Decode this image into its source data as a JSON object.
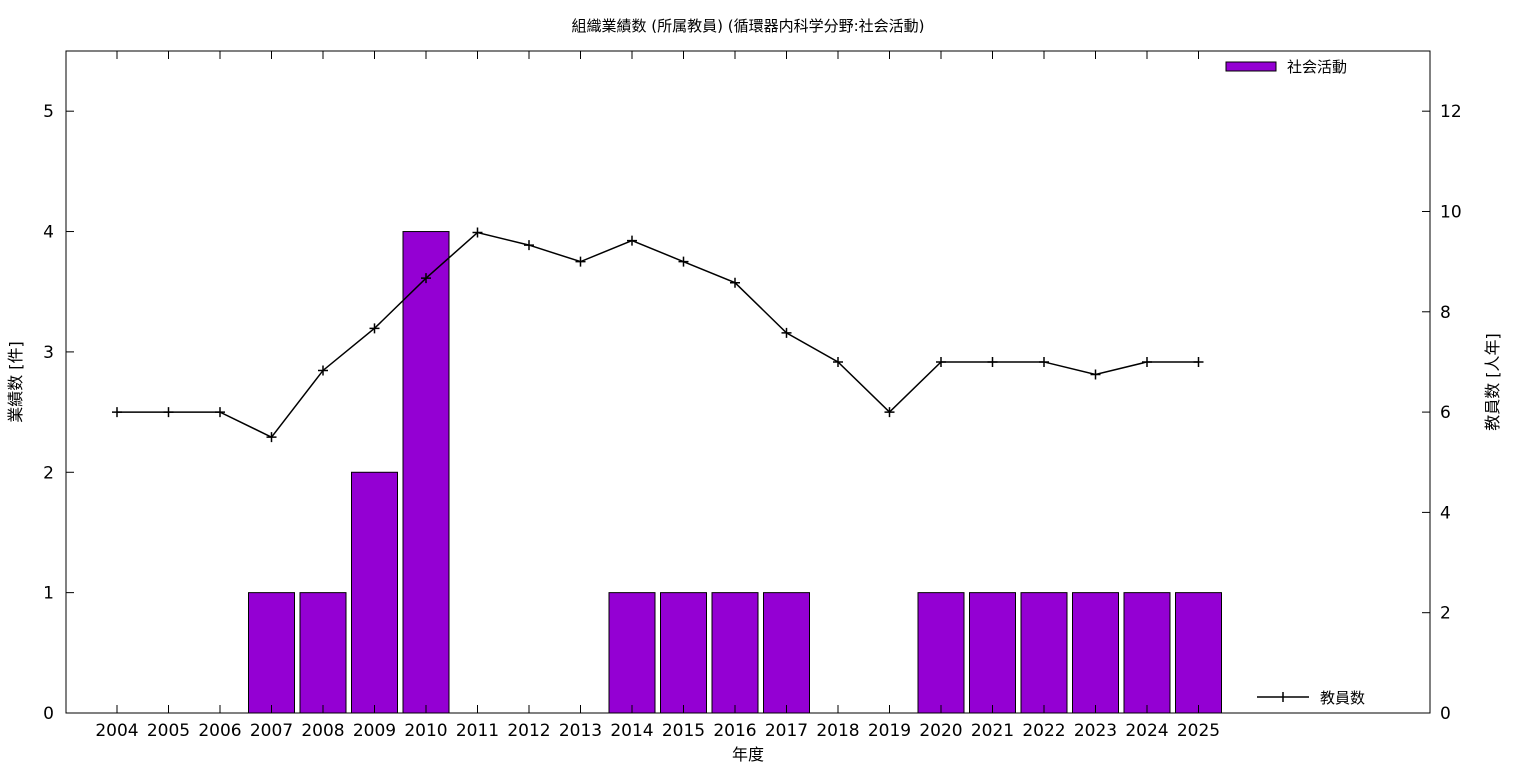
{
  "chart_data": {
    "type": "bar",
    "title": "組織業績数 (所属教員) (循環器内科学分野:社会活動)",
    "xlabel": "年度",
    "ylabel": "業績数 [件]",
    "y2label": "教員数 [人年]",
    "categories": [
      "2004",
      "2005",
      "2006",
      "2007",
      "2008",
      "2009",
      "2010",
      "2011",
      "2012",
      "2013",
      "2014",
      "2015",
      "2016",
      "2017",
      "2018",
      "2019",
      "2020",
      "2021",
      "2022",
      "2023",
      "2024",
      "2025"
    ],
    "ylim": [
      0,
      5.5
    ],
    "y2lim": [
      0,
      13.2
    ],
    "yticks": [
      0,
      1,
      2,
      3,
      4,
      5
    ],
    "y2ticks": [
      0,
      2,
      4,
      6,
      8,
      10,
      12
    ],
    "legend_position": "top-right",
    "grid": false,
    "series": [
      {
        "name": "社会活動",
        "kind": "bar",
        "axis": "left",
        "color": "#9400d3",
        "values": [
          0,
          0,
          0,
          1,
          1,
          2,
          4,
          0,
          0,
          0,
          1,
          1,
          1,
          1,
          0,
          0,
          1,
          1,
          1,
          1,
          1,
          1
        ]
      },
      {
        "name": "教員数",
        "kind": "line",
        "axis": "right",
        "color": "#000000",
        "values": [
          6,
          6,
          6,
          5.5,
          6.83,
          7.67,
          8.67,
          9.58,
          9.33,
          9,
          9.42,
          9,
          8.58,
          7.58,
          7,
          6,
          7,
          7,
          7,
          6.75,
          7,
          7
        ]
      }
    ]
  }
}
